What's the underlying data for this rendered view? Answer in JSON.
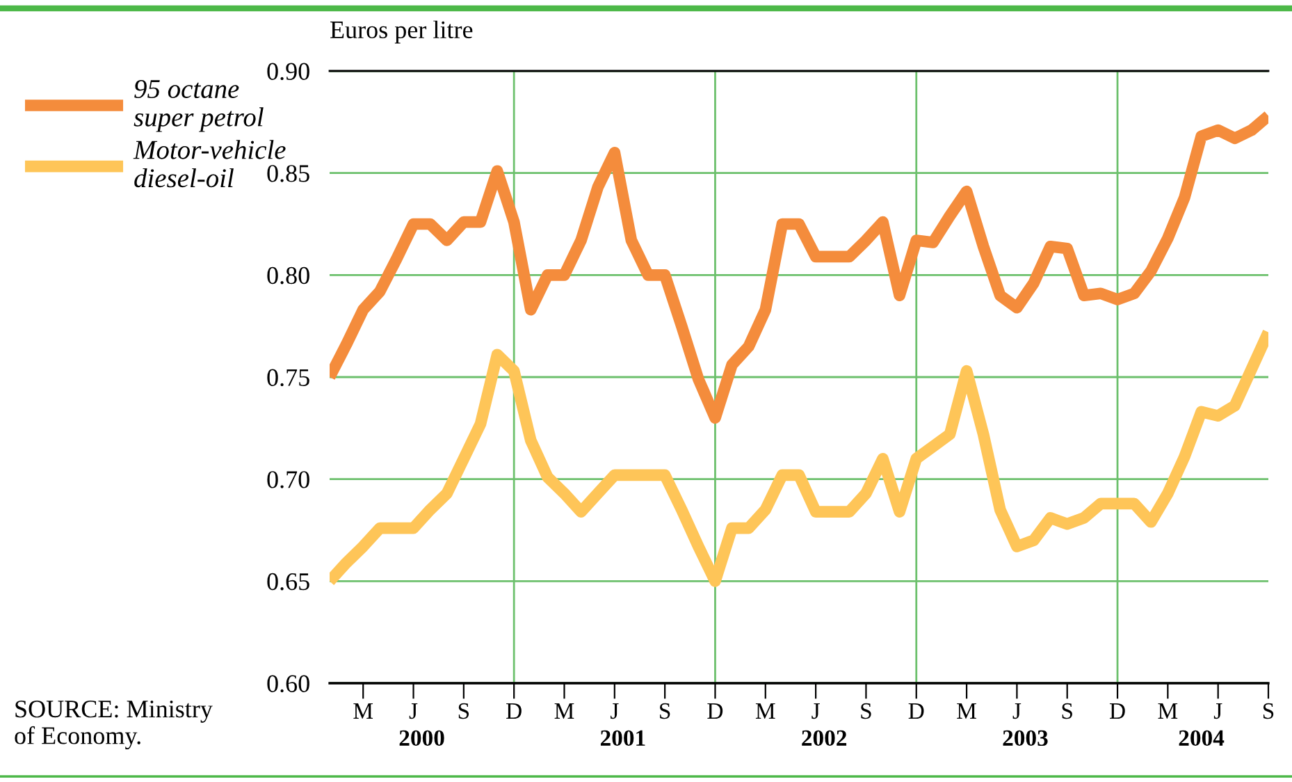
{
  "chart_data": {
    "type": "line",
    "ylabel": "Euros per litre",
    "categories": [
      null,
      null,
      "M",
      null,
      null,
      "J",
      null,
      null,
      "S",
      null,
      null,
      "D",
      null,
      null,
      "M",
      null,
      null,
      "J",
      null,
      null,
      "S",
      null,
      null,
      "D",
      null,
      null,
      "M",
      null,
      null,
      "J",
      null,
      null,
      "S",
      null,
      null,
      "D",
      null,
      null,
      "M",
      null,
      null,
      "J",
      null,
      null,
      "S",
      null,
      null,
      "D",
      null,
      null,
      "M",
      null,
      null,
      "J",
      null,
      null,
      "S"
    ],
    "series": [
      {
        "name": "95 octane super petrol",
        "color": "#f48c3c",
        "values": [
          0.75,
          0.766,
          0.783,
          0.792,
          0.808,
          0.825,
          0.825,
          0.817,
          0.826,
          0.826,
          0.851,
          0.826,
          0.783,
          0.8,
          0.8,
          0.817,
          0.843,
          0.86,
          0.817,
          0.8,
          0.8,
          0.775,
          0.749,
          0.73,
          0.756,
          0.765,
          0.783,
          0.825,
          0.825,
          0.809,
          0.809,
          0.809,
          0.817,
          0.826,
          0.79,
          0.817,
          0.816,
          0.829,
          0.841,
          0.814,
          0.79,
          0.784,
          0.796,
          0.814,
          0.813,
          0.79,
          0.791,
          0.788,
          0.791,
          0.802,
          0.818,
          0.838,
          0.868,
          0.871,
          0.867,
          0.871,
          0.878
        ]
      },
      {
        "name": "Motor-vehicle diesel-oil",
        "color": "#fec558",
        "values": [
          0.65,
          0.659,
          0.667,
          0.676,
          0.676,
          0.676,
          0.685,
          0.693,
          0.71,
          0.727,
          0.761,
          0.753,
          0.719,
          0.701,
          0.693,
          0.684,
          0.693,
          0.702,
          0.702,
          0.702,
          0.702,
          0.685,
          0.667,
          0.65,
          0.676,
          0.676,
          0.685,
          0.702,
          0.702,
          0.684,
          0.684,
          0.684,
          0.693,
          0.71,
          0.684,
          0.71,
          0.716,
          0.722,
          0.753,
          0.722,
          0.685,
          0.667,
          0.67,
          0.681,
          0.678,
          0.681,
          0.688,
          0.688,
          0.688,
          0.679,
          0.693,
          0.711,
          0.733,
          0.731,
          0.736,
          0.754,
          0.772
        ]
      }
    ],
    "ylim": [
      0.6,
      0.9
    ],
    "yticks": [
      {
        "value": 0.6,
        "label": "0.60"
      },
      {
        "value": 0.65,
        "label": "0.65"
      },
      {
        "value": 0.7,
        "label": "0.70"
      },
      {
        "value": 0.75,
        "label": "0.75"
      },
      {
        "value": 0.8,
        "label": "0.80"
      },
      {
        "value": 0.85,
        "label": "0.85"
      },
      {
        "value": 0.9,
        "label": "0.90"
      }
    ],
    "grid": true,
    "legend": "left",
    "line_style": "solid",
    "marker": "none",
    "annotations": [
      "2000",
      "2001",
      "2002",
      "2003",
      "2004",
      "SOURCE: Ministry\nof Economy."
    ]
  }
}
